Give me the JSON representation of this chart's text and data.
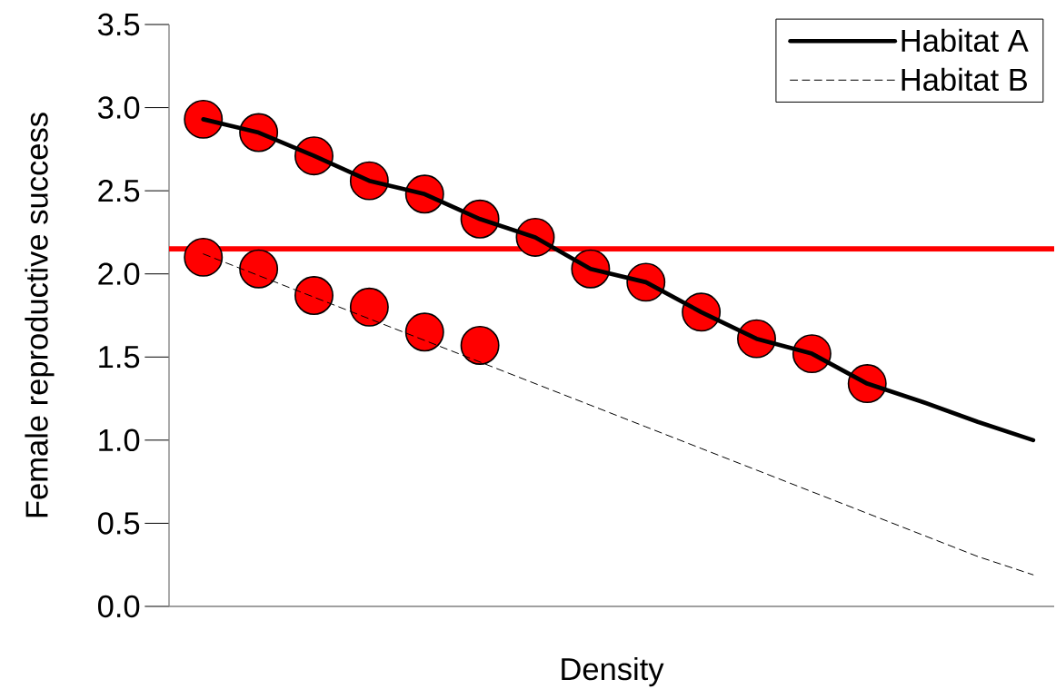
{
  "chart_data": {
    "type": "line",
    "xlabel": "Density",
    "ylabel": "Female reproductive success",
    "categories": [
      null,
      null,
      null,
      null,
      null,
      null,
      null,
      null,
      null,
      null,
      null,
      null,
      null,
      null,
      null,
      null
    ],
    "ylim": [
      0,
      3.5
    ],
    "yticks": [
      {
        "value": 0,
        "label": "0.0"
      },
      {
        "value": 0.5,
        "label": "0.5"
      },
      {
        "value": 1,
        "label": "1.0"
      },
      {
        "value": 1.5,
        "label": "1.5"
      },
      {
        "value": 2,
        "label": "2.0"
      },
      {
        "value": 2.5,
        "label": "2.5"
      },
      {
        "value": 3,
        "label": "3.0"
      },
      {
        "value": 3.5,
        "label": "3.5"
      }
    ],
    "tick_labels": "y",
    "grid": false,
    "legend": "top right",
    "series": [
      {
        "name": "Habitat A",
        "color": "#000000",
        "line_style": "solid",
        "marker": "none",
        "values": [
          2.93,
          2.85,
          2.71,
          2.56,
          2.48,
          2.33,
          2.22,
          2.03,
          1.95,
          1.77,
          1.61,
          1.52,
          1.34,
          1.23,
          1.11,
          1.0
        ]
      },
      {
        "name": "Habitat B",
        "color": "#000000",
        "line_style": "dashed",
        "marker": "none",
        "values": [
          2.12,
          1.99,
          1.86,
          1.73,
          1.6,
          1.47,
          1.34,
          1.21,
          1.08,
          0.95,
          0.82,
          0.69,
          0.56,
          0.43,
          0.3,
          0.19
        ]
      },
      {
        "type": "scatter",
        "color": "#ff0000",
        "marker": "circle",
        "values": [
          2.93,
          2.85,
          2.71,
          2.56,
          2.48,
          2.33,
          2.22,
          2.03,
          1.95,
          1.77,
          1.61,
          1.52,
          1.34,
          null,
          null,
          null
        ]
      },
      {
        "type": "scatter",
        "color": "#ff0000",
        "marker": "circle",
        "values": [
          2.1,
          2.03,
          1.87,
          1.8,
          1.65,
          1.57,
          null,
          null,
          null,
          null,
          null,
          null,
          null,
          null,
          null,
          null
        ]
      }
    ],
    "ref_lines": [
      {
        "axis": "y",
        "value": 2.15,
        "color": "#ff0000"
      }
    ]
  }
}
